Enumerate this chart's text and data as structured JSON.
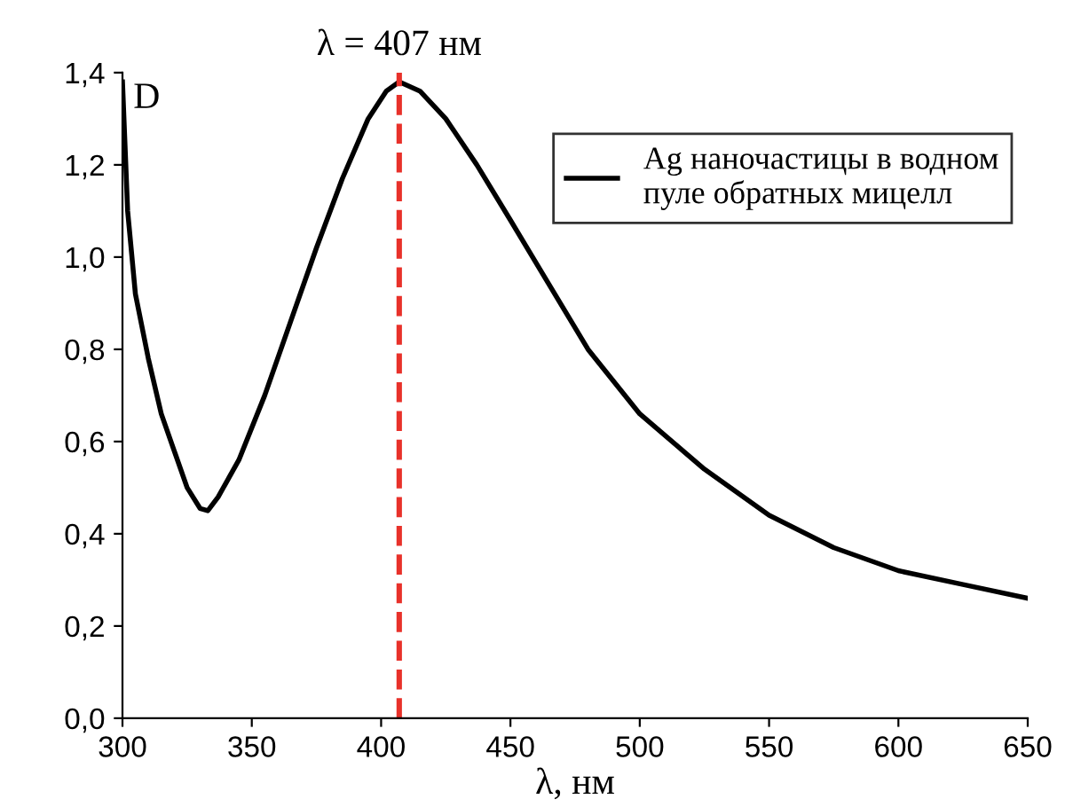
{
  "chart_data": {
    "type": "line",
    "xlabel": "λ, нм",
    "ylabel": "D",
    "x": [
      300,
      302,
      305,
      310,
      315,
      320,
      325,
      330,
      333,
      337,
      345,
      355,
      365,
      375,
      385,
      395,
      402,
      407,
      415,
      425,
      437,
      450,
      465,
      480,
      500,
      525,
      550,
      575,
      600,
      625,
      650
    ],
    "series": [
      {
        "name": "Ag наночастицы в водном\nпуле обратных мицелл",
        "color": "#000000",
        "values": [
          1.38,
          1.1,
          0.92,
          0.78,
          0.66,
          0.58,
          0.5,
          0.455,
          0.45,
          0.48,
          0.56,
          0.7,
          0.86,
          1.02,
          1.17,
          1.3,
          1.36,
          1.38,
          1.36,
          1.3,
          1.2,
          1.08,
          0.94,
          0.8,
          0.66,
          0.54,
          0.44,
          0.37,
          0.32,
          0.29,
          0.26
        ]
      }
    ],
    "xlim": [
      300,
      650
    ],
    "xticks": [
      300,
      350,
      400,
      450,
      500,
      550,
      600,
      650
    ],
    "ylim": [
      0,
      1.4
    ],
    "yticks": [
      {
        "value": 0,
        "label": "0,0"
      },
      {
        "value": 0.2,
        "label": "0,2"
      },
      {
        "value": 0.4,
        "label": "0,4"
      },
      {
        "value": 0.6,
        "label": "0,6"
      },
      {
        "value": 0.8,
        "label": "0,8"
      },
      {
        "value": 1.0,
        "label": "1,0"
      },
      {
        "value": 1.2,
        "label": "1,2"
      },
      {
        "value": 1.4,
        "label": "1,4"
      }
    ],
    "ref_lines": [
      {
        "axis": "x",
        "value": 407,
        "label": "λ = 407 нм",
        "color": "#e8312a",
        "line_style": "dashed"
      }
    ],
    "legend": "top right",
    "grid": false,
    "marker": "none",
    "line_style": "solid"
  }
}
